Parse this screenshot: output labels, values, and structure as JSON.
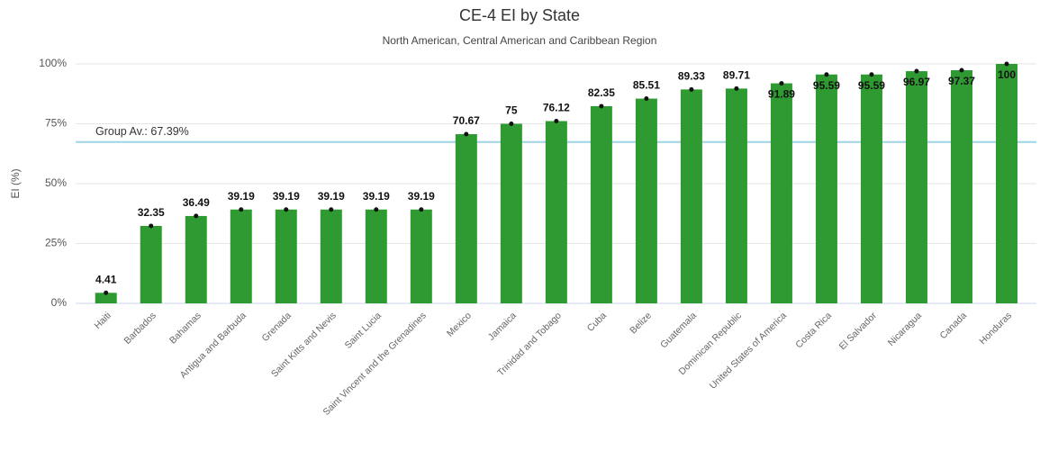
{
  "chart_data": {
    "type": "bar",
    "title": "CE-4 EI by State",
    "subtitle": "North American, Central American and Caribbean Region",
    "y_label": "EI (%)",
    "categories": [
      "Haiti",
      "Barbados",
      "Bahamas",
      "Antigua and Barbuda",
      "Grenada",
      "Saint Kitts and Nevis",
      "Saint Lucia",
      "Saint Vincent and the Grenadines",
      "Mexico",
      "Jamaica",
      "Trinidad and Tobago",
      "Cuba",
      "Belize",
      "Guatemala",
      "Dominican Republic",
      "United States of America",
      "Costa Rica",
      "El Salvador",
      "Nicaragua",
      "Canada",
      "Honduras"
    ],
    "values": [
      4.41,
      32.35,
      36.49,
      39.19,
      39.19,
      39.19,
      39.19,
      39.19,
      70.67,
      75,
      76.12,
      82.35,
      85.51,
      89.33,
      89.71,
      91.89,
      95.59,
      95.59,
      96.97,
      97.37,
      100
    ],
    "color": "#2f9a32",
    "ylim": [
      0,
      100
    ],
    "yticks": [
      {
        "value": 0,
        "label": "0%"
      },
      {
        "value": 25,
        "label": "25%"
      },
      {
        "value": 50,
        "label": "50%"
      },
      {
        "value": 75,
        "label": "75%"
      },
      {
        "value": 100,
        "label": "100%"
      }
    ],
    "grid": true,
    "reference_line": {
      "value": 67.39,
      "label": "Group Av.: 67.39%",
      "color": "#9fd3e6"
    }
  }
}
